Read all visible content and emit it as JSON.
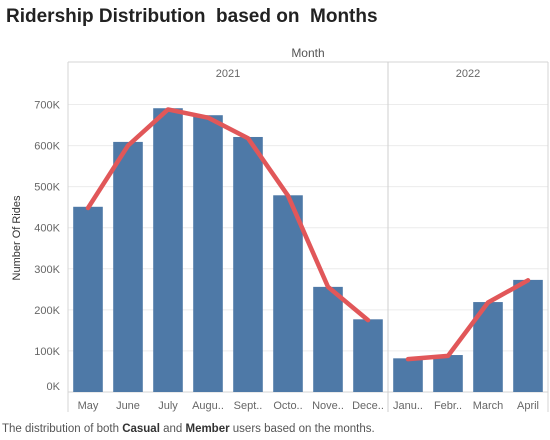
{
  "page": {
    "title": "Ridership Distribution  based on  Months",
    "caption_parts": [
      "The distribution of both ",
      "Casual",
      " and ",
      "Member",
      " users based on the months."
    ]
  },
  "colors": {
    "bar": "#4e79a7",
    "line": "#e15759"
  },
  "chart_data": {
    "type": "bar",
    "column_header": "Month",
    "ylabel": "Number Of Rides",
    "ylim": [
      0,
      750000
    ],
    "y_ticks": [
      0,
      100000,
      200000,
      300000,
      400000,
      500000,
      600000,
      700000
    ],
    "y_tick_labels": [
      "0K",
      "100K",
      "200K",
      "300K",
      "400K",
      "500K",
      "600K",
      "700K"
    ],
    "grid": true,
    "groups": [
      {
        "name": "2021",
        "categories": [
          "May",
          "June",
          "July",
          "Augu..",
          "Sept..",
          "Octo..",
          "Nove..",
          "Dece.."
        ],
        "bar_values": [
          451000,
          609000,
          691000,
          674000,
          621000,
          479000,
          256000,
          177000
        ],
        "line_values": [
          448000,
          600000,
          688000,
          668000,
          618000,
          478000,
          256000,
          175000
        ]
      },
      {
        "name": "2022",
        "categories": [
          "Janu..",
          "Febr..",
          "March",
          "April"
        ],
        "bar_values": [
          82000,
          90000,
          219000,
          273000
        ],
        "line_values": [
          80000,
          88000,
          218000,
          272000
        ]
      }
    ]
  }
}
